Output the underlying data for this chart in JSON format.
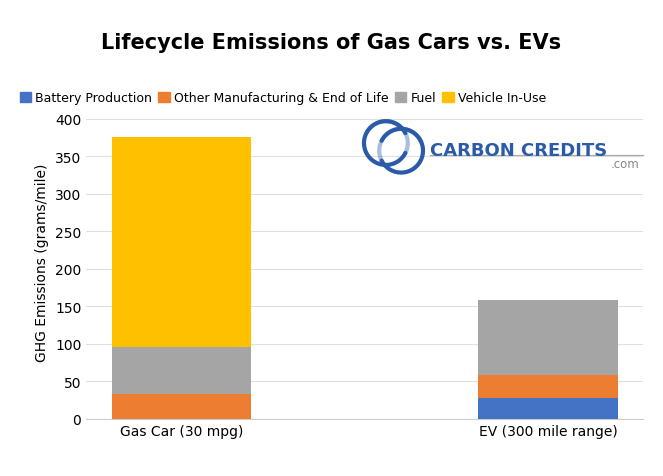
{
  "title": "Lifecycle Emissions of Gas Cars vs. EVs",
  "ylabel": "GHG Emissions (grams/mile)",
  "categories": [
    "Gas Car (30 mpg)",
    "EV (300 mile range)"
  ],
  "series": [
    {
      "label": "Battery Production",
      "color": "#4472C4",
      "values": [
        0,
        28
      ]
    },
    {
      "label": "Other Manufacturing & End of Life",
      "color": "#ED7D31",
      "values": [
        33,
        30
      ]
    },
    {
      "label": "Fuel",
      "color": "#A5A5A5",
      "values": [
        63,
        100
      ]
    },
    {
      "label": "Vehicle In-Use",
      "color": "#FFC000",
      "values": [
        280,
        0
      ]
    }
  ],
  "ylim": [
    0,
    420
  ],
  "yticks": [
    0,
    50,
    100,
    150,
    200,
    250,
    300,
    350,
    400
  ],
  "title_fontsize": 15,
  "axis_label_fontsize": 10,
  "tick_fontsize": 10,
  "background_color": "#FFFFFF",
  "bar_width": 0.38,
  "legend_fontsize": 9,
  "watermark_main": "CARBON CREDITS",
  "watermark_dot_com": ".com",
  "watermark_color": "#2B5BA8",
  "watermark_dot_com_color": "#888888",
  "grid_color": "#E0E0E0",
  "spine_color": "#CCCCCC"
}
